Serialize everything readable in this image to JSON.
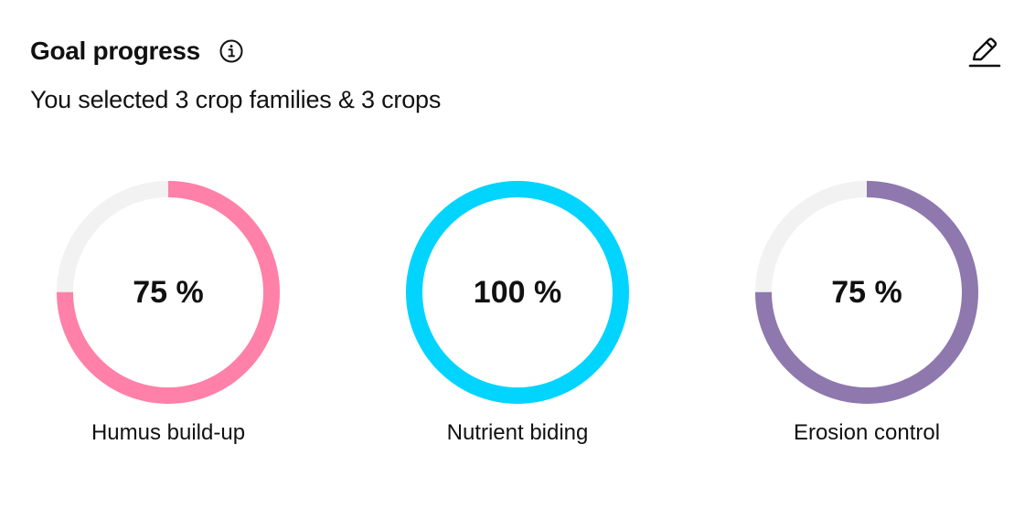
{
  "header": {
    "title": "Goal progress",
    "info_icon": "info-circle-icon",
    "edit_icon": "pencil-icon"
  },
  "summary": "You selected 3 crop families & 3 crops",
  "goals": [
    {
      "label": "Humus build-up",
      "value_text": "75 %",
      "percent": 75,
      "color": "#FF80A8"
    },
    {
      "label": "Nutrient biding",
      "value_text": "100 %",
      "percent": 100,
      "color": "#00D4FF"
    },
    {
      "label": "Erosion control",
      "value_text": "75 %",
      "percent": 75,
      "color": "#8E78AE"
    }
  ],
  "track_color": "#F2F2F2"
}
